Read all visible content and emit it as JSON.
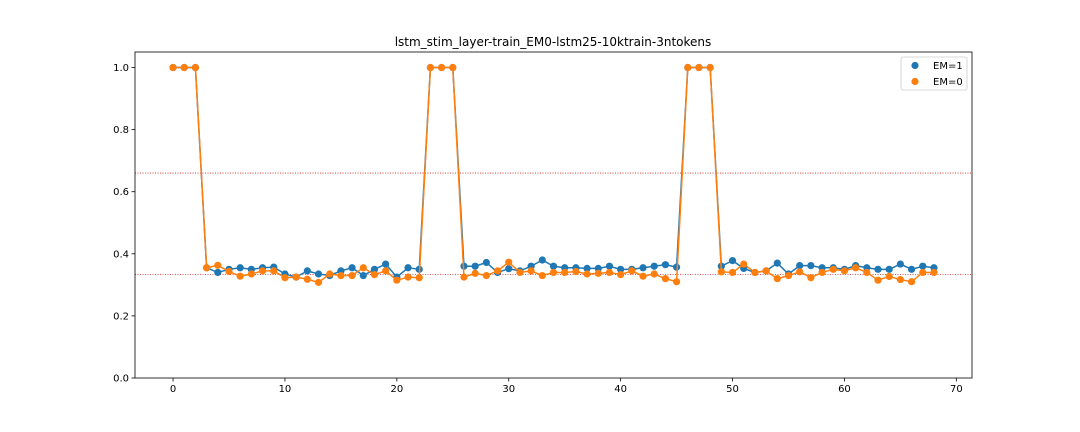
{
  "chart_data": {
    "type": "line",
    "title": "lstm_stim_layer-train_EM0-lstm25-10ktrain-3ntokens",
    "xlabel": "",
    "ylabel": "",
    "xlim": [
      -3.4,
      71.4
    ],
    "ylim": [
      0.0,
      1.05
    ],
    "x_ticks": [
      0,
      10,
      20,
      30,
      40,
      50,
      60,
      70
    ],
    "y_ticks": [
      0.0,
      0.2,
      0.4,
      0.6,
      0.8,
      1.0
    ],
    "x_tick_labels": [
      "0",
      "10",
      "20",
      "30",
      "40",
      "50",
      "60",
      "70"
    ],
    "y_tick_labels": [
      "0.0",
      "0.2",
      "0.4",
      "0.6",
      "0.8",
      "1.0"
    ],
    "grid": false,
    "legend_position": "top-right",
    "hlines": [
      {
        "y": 0.66,
        "color": "#d62728",
        "style": "dotted"
      },
      {
        "y": 0.333,
        "color": "#d62728",
        "style": "dotted"
      }
    ],
    "x": [
      0,
      1,
      2,
      3,
      4,
      5,
      6,
      7,
      8,
      9,
      10,
      11,
      12,
      13,
      14,
      15,
      16,
      17,
      18,
      19,
      20,
      21,
      22,
      23,
      24,
      25,
      26,
      27,
      28,
      29,
      30,
      31,
      32,
      33,
      34,
      35,
      36,
      37,
      38,
      39,
      40,
      41,
      42,
      43,
      44,
      45,
      46,
      47,
      48,
      49,
      50,
      51,
      52,
      53,
      54,
      55,
      56,
      57,
      58,
      59,
      60,
      61,
      62,
      63,
      64,
      65,
      66,
      67,
      68
    ],
    "series": [
      {
        "name": "EM=1",
        "color": "#1f77b4",
        "values": [
          1.0,
          1.0,
          1.0,
          0.355,
          0.34,
          0.35,
          0.355,
          0.35,
          0.355,
          0.357,
          0.335,
          0.325,
          0.345,
          0.335,
          0.33,
          0.345,
          0.355,
          0.33,
          0.35,
          0.367,
          0.325,
          0.355,
          0.35,
          1.0,
          1.0,
          1.0,
          0.36,
          0.36,
          0.372,
          0.34,
          0.352,
          0.345,
          0.36,
          0.38,
          0.36,
          0.355,
          0.355,
          0.353,
          0.353,
          0.36,
          0.35,
          0.35,
          0.355,
          0.36,
          0.365,
          0.357,
          1.0,
          1.0,
          1.0,
          0.36,
          0.378,
          0.353,
          0.34,
          0.345,
          0.37,
          0.335,
          0.362,
          0.362,
          0.355,
          0.355,
          0.35,
          0.362,
          0.355,
          0.35,
          0.35,
          0.367,
          0.35,
          0.36,
          0.355
        ]
      },
      {
        "name": "EM=0",
        "color": "#ff7f0e",
        "values": [
          1.0,
          1.0,
          1.0,
          0.355,
          0.363,
          0.343,
          0.328,
          0.335,
          0.345,
          0.345,
          0.323,
          0.325,
          0.318,
          0.308,
          0.335,
          0.33,
          0.33,
          0.355,
          0.333,
          0.345,
          0.315,
          0.325,
          0.323,
          1.0,
          1.0,
          1.0,
          0.325,
          0.337,
          0.33,
          0.345,
          0.373,
          0.34,
          0.345,
          0.33,
          0.34,
          0.34,
          0.343,
          0.335,
          0.337,
          0.34,
          0.333,
          0.345,
          0.328,
          0.335,
          0.32,
          0.31,
          1.0,
          1.0,
          1.0,
          0.342,
          0.34,
          0.367,
          0.34,
          0.345,
          0.32,
          0.33,
          0.342,
          0.323,
          0.34,
          0.35,
          0.345,
          0.355,
          0.34,
          0.315,
          0.327,
          0.317,
          0.31,
          0.34,
          0.34
        ]
      }
    ]
  }
}
